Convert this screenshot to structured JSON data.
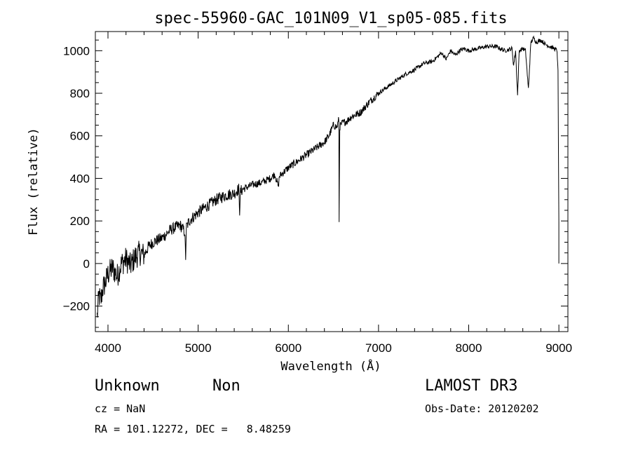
{
  "chart_data": {
    "type": "line",
    "title": "spec-55960-GAC_101N09_V1_sp05-085.fits",
    "xlabel": "Wavelength (Å)",
    "ylabel": "Flux (relative)",
    "xlim": [
      3860,
      9100
    ],
    "ylim": [
      -320,
      1090
    ],
    "grid": false,
    "x_ticks": [
      4000,
      5000,
      6000,
      7000,
      8000,
      9000
    ],
    "y_ticks": [
      -200,
      0,
      200,
      400,
      600,
      800,
      1000
    ],
    "series": [
      {
        "name": "flux",
        "x": [
          3880,
          3900,
          3920,
          3940,
          3960,
          3980,
          4000,
          4050,
          4100,
          4150,
          4200,
          4250,
          4300,
          4350,
          4400,
          4450,
          4500,
          4600,
          4700,
          4800,
          4850,
          4861,
          4870,
          4900,
          5000,
          5100,
          5200,
          5300,
          5400,
          5450,
          5460,
          5470,
          5500,
          5600,
          5700,
          5800,
          5850,
          5890,
          5900,
          5950,
          6000,
          6100,
          6200,
          6300,
          6400,
          6450,
          6500,
          6540,
          6560,
          6563,
          6570,
          6580,
          6600,
          6650,
          6700,
          6750,
          6800,
          6900,
          7000,
          7100,
          7200,
          7300,
          7400,
          7500,
          7600,
          7700,
          7750,
          7800,
          7850,
          7900,
          7950,
          8000,
          8100,
          8200,
          8300,
          8400,
          8480,
          8498,
          8520,
          8542,
          8560,
          8600,
          8630,
          8662,
          8690,
          8720,
          8750,
          8800,
          8850,
          8900,
          8950,
          8980,
          8990,
          9000
        ],
        "values": [
          -250,
          -150,
          -180,
          -120,
          -100,
          -80,
          -50,
          -20,
          -60,
          0,
          20,
          -10,
          30,
          50,
          40,
          80,
          100,
          120,
          160,
          180,
          150,
          30,
          170,
          200,
          240,
          270,
          300,
          320,
          330,
          350,
          250,
          340,
          350,
          370,
          380,
          400,
          420,
          360,
          410,
          430,
          450,
          480,
          510,
          540,
          570,
          600,
          650,
          640,
          680,
          190,
          640,
          650,
          660,
          670,
          690,
          700,
          710,
          760,
          800,
          830,
          860,
          890,
          910,
          940,
          950,
          990,
          960,
          1000,
          980,
          1000,
          1010,
          1000,
          1010,
          1020,
          1020,
          1000,
          1010,
          930,
          1000,
          790,
          1000,
          1010,
          1000,
          820,
          1040,
          1060,
          1040,
          1050,
          1030,
          1020,
          1010,
          1000,
          900,
          200
        ]
      }
    ]
  },
  "info": {
    "object_class": "Unknown",
    "object_subclass": "Non",
    "cz_line": "cz = NaN",
    "coords_line": "RA = 101.12272, DEC =   8.48259",
    "survey": "LAMOST DR3",
    "obs_date": "Obs-Date: 20120202"
  }
}
